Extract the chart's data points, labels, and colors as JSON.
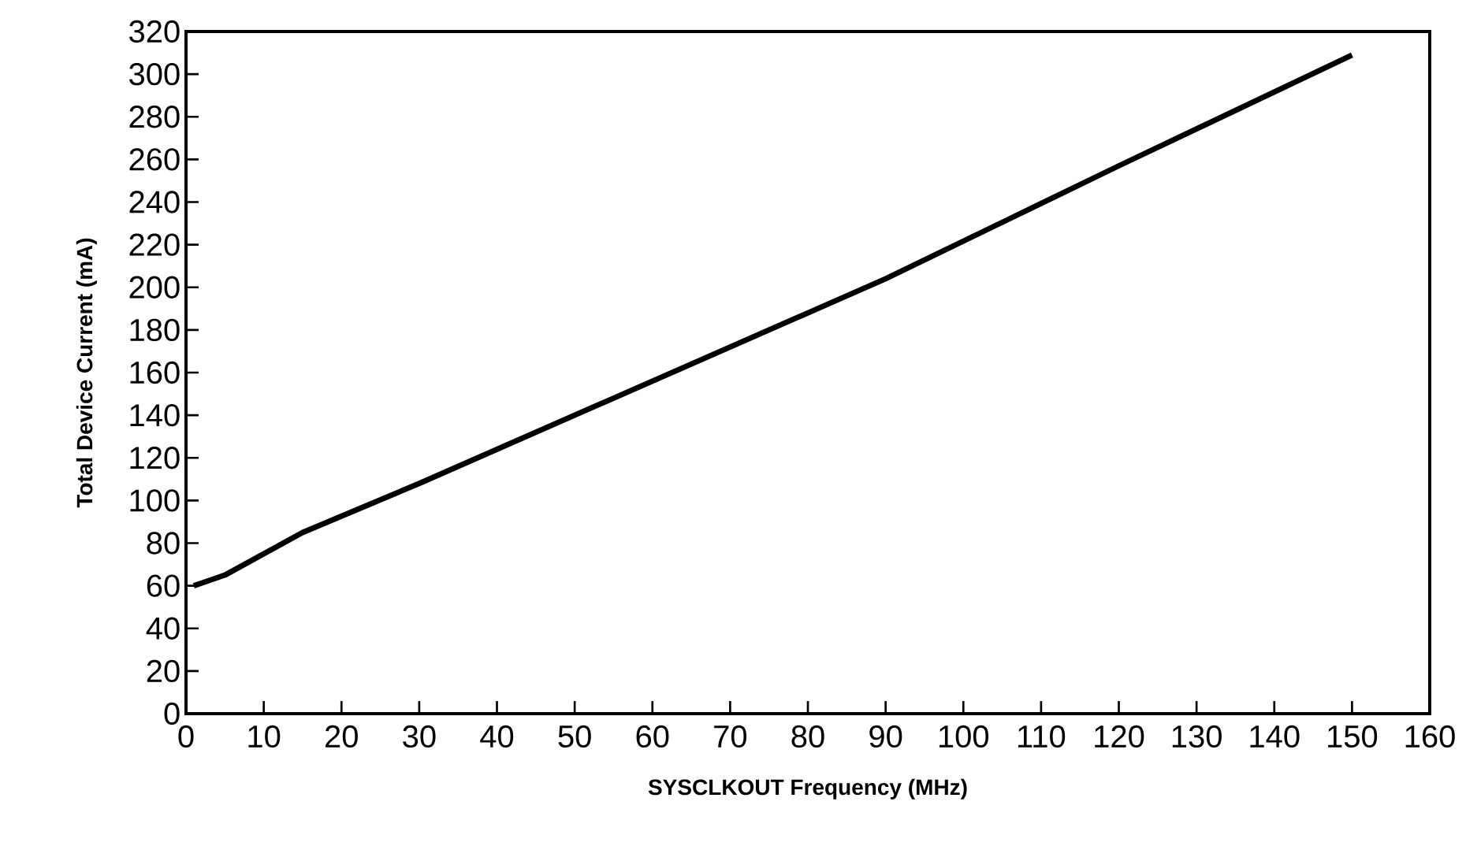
{
  "chart_data": {
    "type": "line",
    "xlabel": "SYSCLKOUT Frequency (MHz)",
    "ylabel": "Total Device Current (mA)",
    "x": [
      1,
      5,
      15,
      30,
      60,
      90,
      120,
      150
    ],
    "series": [
      {
        "color": "#000000",
        "values": [
          60,
          65,
          85,
          108,
          156,
          204,
          257,
          309
        ]
      }
    ],
    "xlim": [
      0,
      160
    ],
    "xticks": [
      0,
      10,
      20,
      30,
      40,
      50,
      60,
      70,
      80,
      90,
      100,
      110,
      120,
      130,
      140,
      150,
      160
    ],
    "ylim": [
      0,
      320
    ],
    "yticks": [
      0,
      20,
      40,
      60,
      80,
      100,
      120,
      140,
      160,
      180,
      200,
      220,
      240,
      260,
      280,
      300,
      320
    ],
    "grid": false,
    "marker": "none",
    "line_style": "solid"
  }
}
